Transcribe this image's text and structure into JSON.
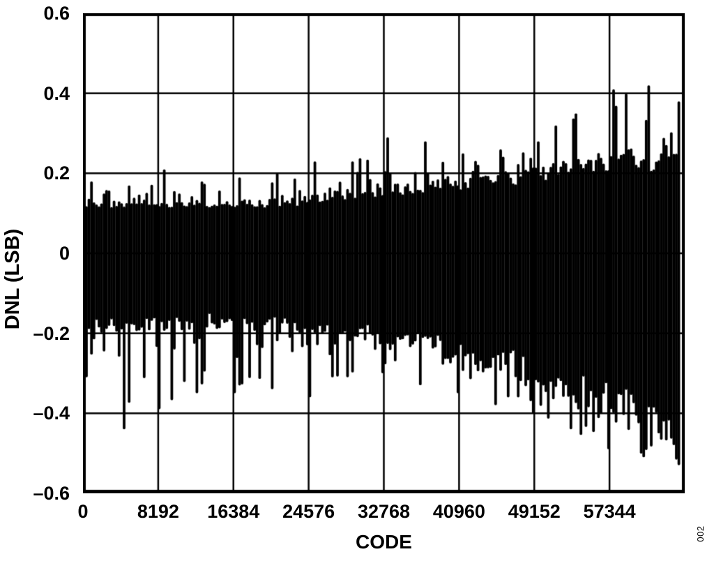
{
  "figure": {
    "figure_number_label": "002"
  },
  "chart_data": {
    "type": "line",
    "title": "",
    "xlabel": "CODE",
    "ylabel": "DNL (LSB)",
    "xlim": [
      0,
      65536
    ],
    "ylim": [
      -0.6,
      0.6
    ],
    "grid": true,
    "legend": "none",
    "x_ticks": [
      0,
      8192,
      16384,
      24576,
      32768,
      40960,
      49152,
      57344
    ],
    "x_tick_labels": [
      "0",
      "8192",
      "16384",
      "24576",
      "32768",
      "40960",
      "49152",
      "57344"
    ],
    "y_ticks": [
      0.6,
      0.4,
      0.2,
      0,
      -0.2,
      -0.4,
      -0.6
    ],
    "y_tick_labels": [
      "0.6",
      "0.4",
      "0.2",
      "0",
      "–0.2",
      "–0.4",
      "–0.6"
    ],
    "series_name": "DNL vs code (dense noise band, 65536 codes)",
    "line_color": "#000000",
    "description": "ADC differential nonlinearity: dense noise band around 0 LSB, roughly +0.13/-0.20 LSB at low codes, widening toward high codes to about +0.27/-0.48 LSB with isolated spikes up to +0.42 and down to -0.53 LSB.",
    "envelope": {
      "codes": [
        0,
        4096,
        8192,
        12288,
        16384,
        20480,
        24576,
        28672,
        32768,
        36864,
        40960,
        45056,
        49152,
        53248,
        57344,
        61440,
        65535
      ],
      "dense_top": [
        0.125,
        0.125,
        0.125,
        0.13,
        0.13,
        0.135,
        0.145,
        0.155,
        0.17,
        0.175,
        0.185,
        0.195,
        0.21,
        0.225,
        0.24,
        0.255,
        0.27
      ],
      "dense_bottom": [
        -0.2,
        -0.195,
        -0.19,
        -0.185,
        -0.18,
        -0.185,
        -0.19,
        -0.205,
        -0.22,
        -0.24,
        -0.265,
        -0.29,
        -0.315,
        -0.345,
        -0.385,
        -0.43,
        -0.48
      ],
      "spike_top": [
        0.18,
        0.17,
        0.21,
        0.18,
        0.19,
        0.2,
        0.23,
        0.23,
        0.29,
        0.28,
        0.25,
        0.26,
        0.28,
        0.35,
        0.41,
        0.42,
        0.38
      ],
      "spike_bottom": [
        -0.31,
        -0.44,
        -0.39,
        -0.35,
        -0.35,
        -0.34,
        -0.36,
        -0.31,
        -0.3,
        -0.33,
        -0.35,
        -0.38,
        -0.4,
        -0.44,
        -0.49,
        -0.51,
        -0.53
      ]
    },
    "noise_seed": 11
  }
}
